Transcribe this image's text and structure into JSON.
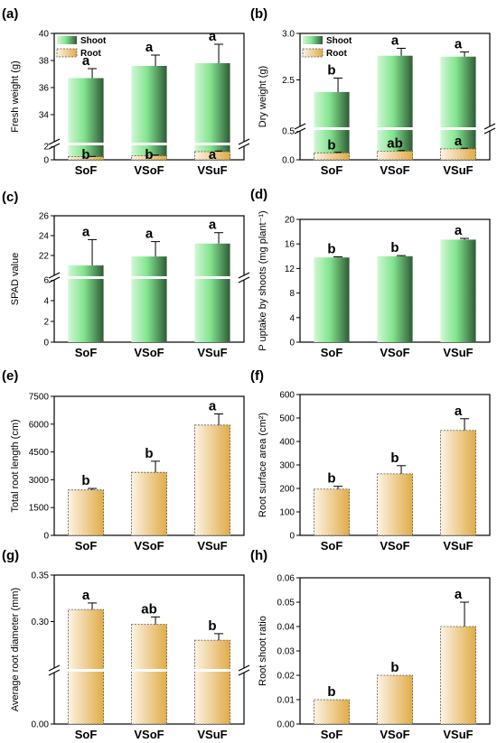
{
  "figure": {
    "colors": {
      "shoot_light": "#d2f7d6",
      "shoot_mid": "#82e48e",
      "shoot_dark": "#2f5b36",
      "root_light": "#fdf3e4",
      "root_dark": "#e0ac48"
    }
  },
  "chart_data": [
    {
      "panel": "(a)",
      "type": "bar",
      "ylabel": "Fresh weight (g)",
      "categories": [
        "SoF",
        "VSoF",
        "VSuF"
      ],
      "axis_break": {
        "lower": [
          0,
          2
        ],
        "upper": [
          32,
          40
        ]
      },
      "yticks_lower": [
        0,
        2
      ],
      "yticks_upper": [
        34,
        36,
        38,
        40
      ],
      "legend": {
        "shoot": "Shoot",
        "root": "Root",
        "position": "top-left"
      },
      "series": [
        {
          "name": "Shoot",
          "values": [
            36.7,
            37.6,
            37.8
          ],
          "errors": [
            0.7,
            0.8,
            1.4
          ],
          "labels": [
            "a",
            "a",
            "a"
          ]
        },
        {
          "name": "Root",
          "values": [
            0.45,
            0.6,
            1.2
          ],
          "errors": [
            0.05,
            0.1,
            0.1
          ],
          "labels": [
            "b",
            "b",
            "a"
          ]
        }
      ]
    },
    {
      "panel": "(b)",
      "type": "bar",
      "ylabel": "Dry weight (g)",
      "categories": [
        "SoF",
        "VSoF",
        "VSuF"
      ],
      "axis_break": {
        "lower": [
          0,
          0.5
        ],
        "upper": [
          2.0,
          3.0
        ]
      },
      "yticks_lower": [
        0.0,
        0.5
      ],
      "yticks_upper": [
        2.5,
        3.0
      ],
      "legend": {
        "shoot": "Shoot",
        "root": "Root",
        "position": "top-left"
      },
      "series": [
        {
          "name": "Shoot",
          "values": [
            2.37,
            2.76,
            2.75
          ],
          "errors": [
            0.15,
            0.08,
            0.05
          ],
          "labels": [
            "b",
            "a",
            "a"
          ]
        },
        {
          "name": "Root",
          "values": [
            0.12,
            0.15,
            0.19
          ],
          "errors": [
            0.01,
            0.01,
            0.01
          ],
          "labels": [
            "b",
            "ab",
            "a"
          ]
        }
      ]
    },
    {
      "panel": "(c)",
      "type": "bar",
      "ylabel": "SPAD value",
      "categories": [
        "SoF",
        "VSoF",
        "VSuF"
      ],
      "axis_break": {
        "lower": [
          0,
          6
        ],
        "upper": [
          20,
          26
        ]
      },
      "yticks_lower": [
        0,
        2,
        4,
        6
      ],
      "yticks_upper": [
        22,
        24,
        26
      ],
      "values": [
        21.0,
        21.9,
        23.2
      ],
      "errors": [
        2.6,
        1.5,
        1.1
      ],
      "labels": [
        "a",
        "a",
        "a"
      ]
    },
    {
      "panel": "(d)",
      "type": "bar",
      "ylabel": "P uptake by shoots (mg plant⁻¹)",
      "categories": [
        "SoF",
        "VSoF",
        "VSuF"
      ],
      "ylim": [
        0,
        20
      ],
      "yticks": [
        0,
        4,
        8,
        12,
        16,
        20
      ],
      "values": [
        13.8,
        14.0,
        16.7
      ],
      "errors": [
        0.1,
        0.1,
        0.2
      ],
      "labels": [
        "b",
        "b",
        "a"
      ]
    },
    {
      "panel": "(e)",
      "type": "bar",
      "ylabel": "Total root length (cm)",
      "categories": [
        "SoF",
        "VSoF",
        "VSuF"
      ],
      "ylim": [
        0,
        7500
      ],
      "yticks": [
        0,
        1500,
        3000,
        4500,
        6000,
        7500
      ],
      "values": [
        2450,
        3400,
        5950
      ],
      "errors": [
        80,
        600,
        600
      ],
      "labels": [
        "b",
        "b",
        "a"
      ]
    },
    {
      "panel": "(f)",
      "type": "bar",
      "ylabel": "Root surface area (cm²)",
      "categories": [
        "SoF",
        "VSoF",
        "VSuF"
      ],
      "ylim": [
        0,
        600
      ],
      "yticks": [
        0,
        100,
        200,
        300,
        400,
        500,
        600
      ],
      "values": [
        197,
        262,
        447
      ],
      "errors": [
        12,
        35,
        50
      ],
      "labels": [
        "b",
        "b",
        "a"
      ]
    },
    {
      "panel": "(g)",
      "type": "bar",
      "ylabel": "Average root diameter (mm)",
      "categories": [
        "SoF",
        "VSoF",
        "VSuF"
      ],
      "axis_break": {
        "lower": [
          0.0,
          0.05
        ],
        "upper": [
          0.25,
          0.35
        ]
      },
      "yticks_lower": [
        0.0
      ],
      "yticks_upper": [
        0.3,
        0.35
      ],
      "values": [
        0.313,
        0.297,
        0.28
      ],
      "errors": [
        0.007,
        0.008,
        0.007
      ],
      "labels": [
        "a",
        "ab",
        "b"
      ]
    },
    {
      "panel": "(h)",
      "type": "bar",
      "ylabel": "Root shoot ratio",
      "categories": [
        "SoF",
        "VSoF",
        "VSuF"
      ],
      "ylim": [
        0,
        0.06
      ],
      "yticks": [
        0.0,
        0.01,
        0.02,
        0.03,
        0.04,
        0.05,
        0.06
      ],
      "values": [
        0.01,
        0.02,
        0.04
      ],
      "errors": [
        0.0,
        0.0,
        0.01
      ],
      "labels": [
        "b",
        "b",
        "a"
      ]
    }
  ]
}
